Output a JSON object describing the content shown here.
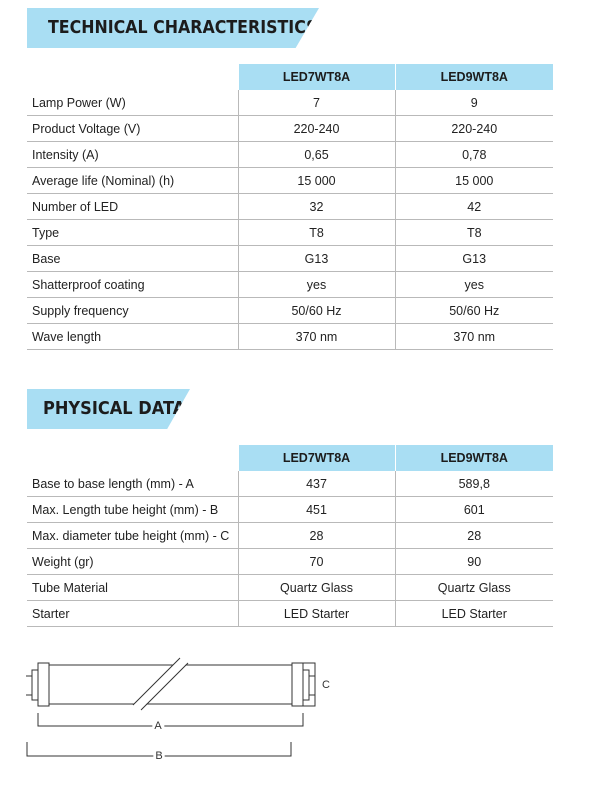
{
  "technical": {
    "title": "TECHNICAL CHARACTERISTICS",
    "columns": [
      "LED7WT8A",
      "LED9WT8A"
    ],
    "rows": [
      {
        "label": "Lamp Power (W)",
        "values": [
          "7",
          "9"
        ]
      },
      {
        "label": "Product Voltage (V)",
        "values": [
          "220-240",
          "220-240"
        ]
      },
      {
        "label": "Intensity (A)",
        "values": [
          "0,65",
          "0,78"
        ]
      },
      {
        "label": "Average life (Nominal) (h)",
        "values": [
          "15 000",
          "15 000"
        ]
      },
      {
        "label": "Number of LED",
        "values": [
          "32",
          "42"
        ]
      },
      {
        "label": "Type",
        "values": [
          "T8",
          "T8"
        ]
      },
      {
        "label": "Base",
        "values": [
          "G13",
          "G13"
        ]
      },
      {
        "label": "Shatterproof coating",
        "values": [
          "yes",
          "yes"
        ]
      },
      {
        "label": "Supply frequency",
        "values": [
          "50/60 Hz",
          "50/60 Hz"
        ]
      },
      {
        "label": "Wave length",
        "values": [
          "370 nm",
          "370 nm"
        ]
      }
    ]
  },
  "physical": {
    "title": "PHYSICAL DATA",
    "columns": [
      "LED7WT8A",
      "LED9WT8A"
    ],
    "rows": [
      {
        "label": "Base to base length (mm) - A",
        "values": [
          "437",
          "589,8"
        ]
      },
      {
        "label": "Max. Length tube height (mm) - B",
        "values": [
          "451",
          "601"
        ]
      },
      {
        "label": "Max. diameter tube height (mm) - C",
        "values": [
          "28",
          "28"
        ]
      },
      {
        "label": "Weight (gr)",
        "values": [
          "70",
          "90"
        ]
      },
      {
        "label": "Tube Material",
        "values": [
          "Quartz Glass",
          "Quartz Glass"
        ]
      },
      {
        "label": "Starter",
        "values": [
          "LED Starter",
          "LED Starter"
        ]
      }
    ]
  },
  "diagram": {
    "label_a": "A",
    "label_b": "B",
    "label_c": "C"
  },
  "colors": {
    "accent": "#a9def3",
    "line": "#b9b9b9",
    "text": "#1c1c1c"
  }
}
